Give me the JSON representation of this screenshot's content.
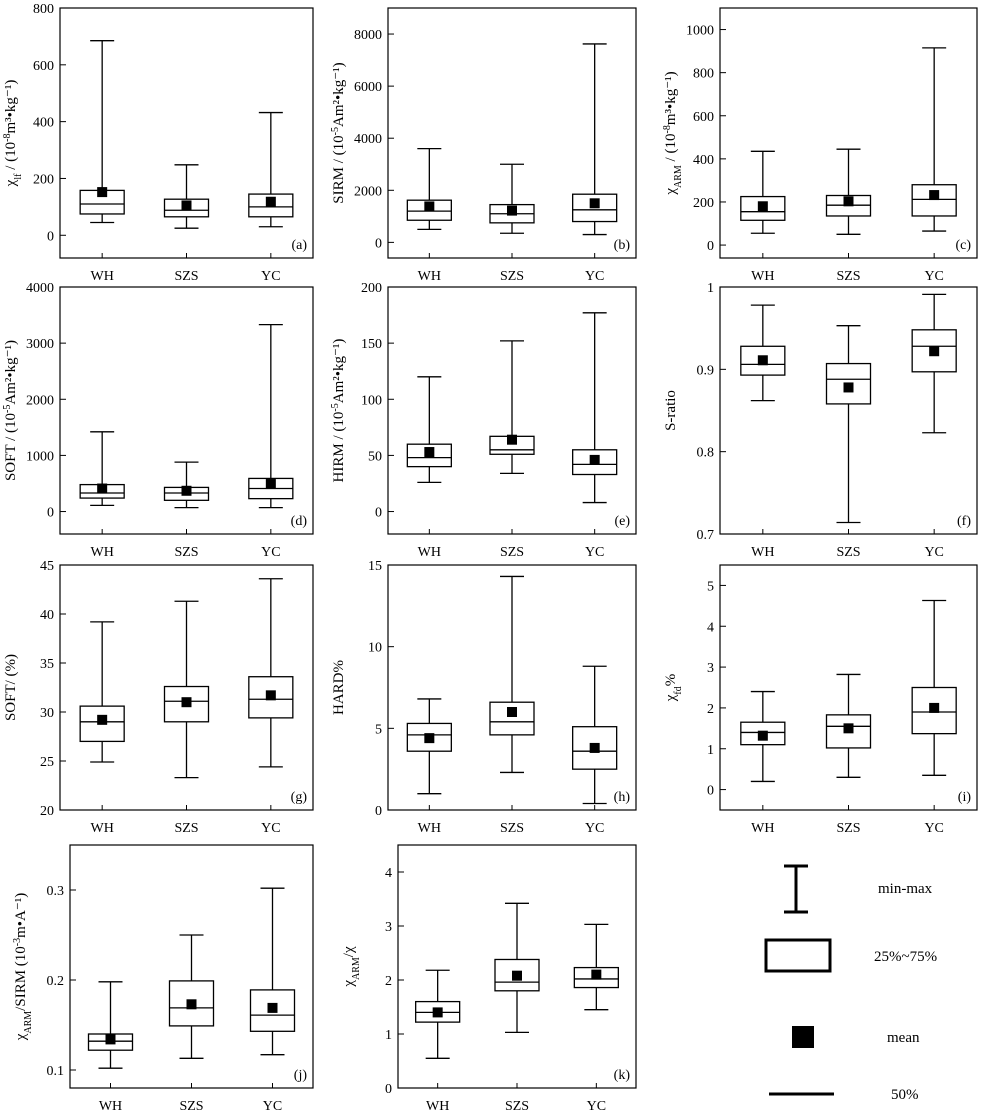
{
  "chart_data": [
    {
      "type": "box",
      "panel_label": "(a)",
      "ylabel_main": "χ",
      "ylabel_sub": "lf",
      "ylabel_rest": " / (10",
      "ylabel_exp": "-8",
      "ylabel_tail": "m³•kg⁻¹)",
      "ylim": [
        -80,
        800
      ],
      "yticks": [
        0,
        200,
        400,
        600,
        800
      ],
      "categories": [
        "WH",
        "SZS",
        "YC"
      ],
      "boxes": [
        {
          "min": 45,
          "q1": 75,
          "median": 110,
          "q3": 158,
          "max": 685,
          "mean": 152
        },
        {
          "min": 25,
          "q1": 65,
          "median": 88,
          "q3": 127,
          "max": 248,
          "mean": 105
        },
        {
          "min": 30,
          "q1": 65,
          "median": 100,
          "q3": 145,
          "max": 432,
          "mean": 118
        }
      ]
    },
    {
      "type": "box",
      "panel_label": "(b)",
      "ylabel_main": "SIRM / (10",
      "ylabel_sub": "",
      "ylabel_rest": "",
      "ylabel_exp": "-5",
      "ylabel_tail": "Am²•kg⁻¹)",
      "ylim": [
        -600,
        9000
      ],
      "yticks": [
        0,
        2000,
        4000,
        6000,
        8000
      ],
      "categories": [
        "WH",
        "SZS",
        "YC"
      ],
      "boxes": [
        {
          "min": 500,
          "q1": 850,
          "median": 1200,
          "q3": 1620,
          "max": 3600,
          "mean": 1380
        },
        {
          "min": 350,
          "q1": 750,
          "median": 1100,
          "q3": 1450,
          "max": 3000,
          "mean": 1220
        },
        {
          "min": 300,
          "q1": 800,
          "median": 1250,
          "q3": 1850,
          "max": 7620,
          "mean": 1500
        }
      ]
    },
    {
      "type": "box",
      "panel_label": "(c)",
      "ylabel_main": "χ",
      "ylabel_sub": "ARM",
      "ylabel_rest": " / (10",
      "ylabel_exp": "-8",
      "ylabel_tail": "m³•kg⁻¹)",
      "ylim": [
        -60,
        1100
      ],
      "yticks": [
        0,
        200,
        400,
        600,
        800,
        1000
      ],
      "categories": [
        "WH",
        "SZS",
        "YC"
      ],
      "boxes": [
        {
          "min": 55,
          "q1": 115,
          "median": 155,
          "q3": 225,
          "max": 435,
          "mean": 180
        },
        {
          "min": 50,
          "q1": 135,
          "median": 185,
          "q3": 230,
          "max": 445,
          "mean": 203
        },
        {
          "min": 65,
          "q1": 135,
          "median": 212,
          "q3": 280,
          "max": 915,
          "mean": 232
        }
      ]
    },
    {
      "type": "box",
      "panel_label": "(d)",
      "ylabel_main": "SOFT / (10",
      "ylabel_sub": "",
      "ylabel_rest": "",
      "ylabel_exp": "-5",
      "ylabel_tail": "Am²•kg⁻¹)",
      "ylim": [
        -400,
        4000
      ],
      "yticks": [
        0,
        1000,
        2000,
        3000,
        4000
      ],
      "categories": [
        "WH",
        "SZS",
        "YC"
      ],
      "boxes": [
        {
          "min": 110,
          "q1": 240,
          "median": 330,
          "q3": 480,
          "max": 1420,
          "mean": 410
        },
        {
          "min": 70,
          "q1": 200,
          "median": 330,
          "q3": 430,
          "max": 880,
          "mean": 370
        },
        {
          "min": 70,
          "q1": 230,
          "median": 410,
          "q3": 590,
          "max": 3330,
          "mean": 490
        }
      ]
    },
    {
      "type": "box",
      "panel_label": "(e)",
      "ylabel_main": "HIRM / (10",
      "ylabel_sub": "",
      "ylabel_rest": "",
      "ylabel_exp": "-5",
      "ylabel_tail": "Am²•kg⁻¹)",
      "ylim": [
        -20,
        200
      ],
      "yticks": [
        0,
        50,
        100,
        150,
        200
      ],
      "categories": [
        "WH",
        "SZS",
        "YC"
      ],
      "boxes": [
        {
          "min": 26,
          "q1": 40,
          "median": 48,
          "q3": 60,
          "max": 120,
          "mean": 53
        },
        {
          "min": 34,
          "q1": 51,
          "median": 55,
          "q3": 67,
          "max": 152,
          "mean": 64
        },
        {
          "min": 8,
          "q1": 33,
          "median": 42,
          "q3": 55,
          "max": 177,
          "mean": 46
        }
      ]
    },
    {
      "type": "box",
      "panel_label": "(f)",
      "ylabel_main": "S-ratio",
      "ylabel_sub": "",
      "ylabel_rest": "",
      "ylabel_exp": "",
      "ylabel_tail": "",
      "ylim": [
        0.7,
        1.0
      ],
      "yticks": [
        0.7,
        0.8,
        0.9,
        1.0
      ],
      "categories": [
        "WH",
        "SZS",
        "YC"
      ],
      "boxes": [
        {
          "min": 0.862,
          "q1": 0.893,
          "median": 0.906,
          "q3": 0.928,
          "max": 0.978,
          "mean": 0.911
        },
        {
          "min": 0.714,
          "q1": 0.858,
          "median": 0.888,
          "q3": 0.907,
          "max": 0.953,
          "mean": 0.878
        },
        {
          "min": 0.823,
          "q1": 0.897,
          "median": 0.928,
          "q3": 0.948,
          "max": 0.991,
          "mean": 0.922
        }
      ]
    },
    {
      "type": "box",
      "panel_label": "(g)",
      "ylabel_main": "SOFT/ (%)",
      "ylabel_sub": "",
      "ylabel_rest": "",
      "ylabel_exp": "",
      "ylabel_tail": "",
      "ylim": [
        20,
        45
      ],
      "yticks": [
        20,
        25,
        30,
        35,
        40,
        45
      ],
      "categories": [
        "WH",
        "SZS",
        "YC"
      ],
      "boxes": [
        {
          "min": 24.9,
          "q1": 27.0,
          "median": 29.0,
          "q3": 30.6,
          "max": 39.2,
          "mean": 29.2
        },
        {
          "min": 23.3,
          "q1": 29.0,
          "median": 31.1,
          "q3": 32.6,
          "max": 41.3,
          "mean": 31.0
        },
        {
          "min": 24.4,
          "q1": 29.4,
          "median": 31.3,
          "q3": 33.6,
          "max": 43.6,
          "mean": 31.7
        }
      ]
    },
    {
      "type": "box",
      "panel_label": "(h)",
      "ylabel_main": "HARD%",
      "ylabel_sub": "",
      "ylabel_rest": "",
      "ylabel_exp": "",
      "ylabel_tail": "",
      "ylim": [
        0,
        15
      ],
      "yticks": [
        0,
        5,
        10,
        15
      ],
      "categories": [
        "WH",
        "SZS",
        "YC"
      ],
      "boxes": [
        {
          "min": 1.0,
          "q1": 3.6,
          "median": 4.6,
          "q3": 5.3,
          "max": 6.8,
          "mean": 4.4
        },
        {
          "min": 2.3,
          "q1": 4.6,
          "median": 5.4,
          "q3": 6.6,
          "max": 14.3,
          "mean": 6.0
        },
        {
          "min": 0.4,
          "q1": 2.5,
          "median": 3.6,
          "q3": 5.1,
          "max": 8.8,
          "mean": 3.8
        }
      ]
    },
    {
      "type": "box",
      "panel_label": "(i)",
      "ylabel_main": "χ",
      "ylabel_sub": "fd",
      "ylabel_rest": "%",
      "ylabel_exp": "",
      "ylabel_tail": "",
      "ylim": [
        -0.5,
        5.5
      ],
      "yticks": [
        0,
        1,
        2,
        3,
        4,
        5
      ],
      "categories": [
        "WH",
        "SZS",
        "YC"
      ],
      "boxes": [
        {
          "min": 0.2,
          "q1": 1.1,
          "median": 1.4,
          "q3": 1.65,
          "max": 2.4,
          "mean": 1.32
        },
        {
          "min": 0.3,
          "q1": 1.02,
          "median": 1.55,
          "q3": 1.83,
          "max": 2.82,
          "mean": 1.5
        },
        {
          "min": 0.35,
          "q1": 1.37,
          "median": 1.9,
          "q3": 2.5,
          "max": 4.63,
          "mean": 2.0
        }
      ]
    },
    {
      "type": "box",
      "panel_label": "(j)",
      "ylabel_main": "χ",
      "ylabel_sub": "ARM",
      "ylabel_rest": "/SIRM (10",
      "ylabel_exp": "-3",
      "ylabel_tail": "m•A⁻¹)",
      "ylim": [
        0.08,
        0.35
      ],
      "yticks": [
        0.1,
        0.2,
        0.3
      ],
      "categories": [
        "WH",
        "SZS",
        "YC"
      ],
      "boxes": [
        {
          "min": 0.102,
          "q1": 0.122,
          "median": 0.132,
          "q3": 0.14,
          "max": 0.198,
          "mean": 0.134
        },
        {
          "min": 0.113,
          "q1": 0.149,
          "median": 0.169,
          "q3": 0.199,
          "max": 0.25,
          "mean": 0.173
        },
        {
          "min": 0.117,
          "q1": 0.143,
          "median": 0.161,
          "q3": 0.189,
          "max": 0.302,
          "mean": 0.169
        }
      ]
    },
    {
      "type": "box",
      "panel_label": "(k)",
      "ylabel_main": "χ",
      "ylabel_sub": "ARM",
      "ylabel_rest": "/χ",
      "ylabel_exp": "",
      "ylabel_tail": "",
      "ylim": [
        0,
        4.5
      ],
      "yticks": [
        0,
        1,
        2,
        3,
        4
      ],
      "categories": [
        "WH",
        "SZS",
        "YC"
      ],
      "boxes": [
        {
          "min": 0.55,
          "q1": 1.22,
          "median": 1.4,
          "q3": 1.6,
          "max": 2.18,
          "mean": 1.4
        },
        {
          "min": 1.03,
          "q1": 1.8,
          "median": 1.96,
          "q3": 2.38,
          "max": 3.42,
          "mean": 2.08
        },
        {
          "min": 1.45,
          "q1": 1.86,
          "median": 2.02,
          "q3": 2.23,
          "max": 3.03,
          "mean": 2.1
        }
      ]
    }
  ],
  "legend": {
    "minmax": "min-max",
    "iqr": "25%~75%",
    "mean": "mean",
    "median": "50%"
  }
}
